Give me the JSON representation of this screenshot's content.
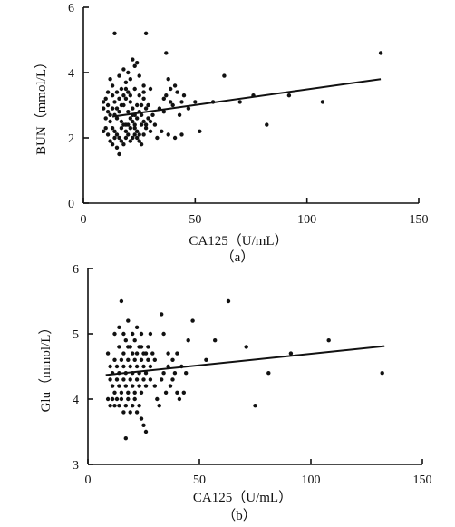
{
  "figure_a_caption": "（a）",
  "figure_b_caption": "（b）",
  "chart_data": [
    {
      "type": "scatter",
      "panel": "a",
      "xlabel": "CA125（U/mL）",
      "ylabel": "BUN（mmol/L）",
      "xlim": [
        0,
        150
      ],
      "ylim": [
        0,
        6
      ],
      "xticks": [
        0,
        50,
        100,
        150
      ],
      "yticks": [
        0,
        2,
        4,
        6
      ],
      "trendline": {
        "x": [
          13,
          133
        ],
        "y": [
          2.65,
          3.8
        ]
      },
      "points": [
        [
          14,
          5.2
        ],
        [
          28,
          5.2
        ],
        [
          37,
          4.6
        ],
        [
          133,
          4.6
        ],
        [
          63,
          3.9
        ],
        [
          22,
          4.4
        ],
        [
          24,
          4.3
        ],
        [
          18,
          4.1
        ],
        [
          20,
          4.0
        ],
        [
          23,
          4.2
        ],
        [
          12,
          3.8
        ],
        [
          16,
          3.9
        ],
        [
          19,
          3.7
        ],
        [
          21,
          3.8
        ],
        [
          25,
          3.9
        ],
        [
          27,
          3.6
        ],
        [
          30,
          3.5
        ],
        [
          38,
          3.8
        ],
        [
          39,
          3.5
        ],
        [
          42,
          3.4
        ],
        [
          45,
          3.3
        ],
        [
          36,
          3.2
        ],
        [
          40,
          3.0
        ],
        [
          44,
          3.1
        ],
        [
          47,
          2.9
        ],
        [
          50,
          3.1
        ],
        [
          76,
          3.3
        ],
        [
          92,
          3.3
        ],
        [
          70,
          3.1
        ],
        [
          58,
          3.1
        ],
        [
          107,
          3.1
        ],
        [
          82,
          2.4
        ],
        [
          52,
          2.2
        ],
        [
          38,
          2.1
        ],
        [
          35,
          2.2
        ],
        [
          41,
          2.0
        ],
        [
          44,
          2.1
        ],
        [
          33,
          2.0
        ],
        [
          10,
          3.2
        ],
        [
          11,
          3.0
        ],
        [
          13,
          2.9
        ],
        [
          14,
          2.7
        ],
        [
          15,
          2.6
        ],
        [
          16,
          2.8
        ],
        [
          17,
          3.0
        ],
        [
          18,
          3.3
        ],
        [
          19,
          3.5
        ],
        [
          20,
          3.4
        ],
        [
          21,
          3.1
        ],
        [
          22,
          2.9
        ],
        [
          23,
          2.7
        ],
        [
          24,
          2.6
        ],
        [
          25,
          2.8
        ],
        [
          26,
          3.0
        ],
        [
          27,
          3.2
        ],
        [
          28,
          2.9
        ],
        [
          29,
          2.6
        ],
        [
          30,
          2.5
        ],
        [
          31,
          2.7
        ],
        [
          12,
          2.5
        ],
        [
          13,
          2.3
        ],
        [
          14,
          2.2
        ],
        [
          15,
          2.1
        ],
        [
          16,
          2.0
        ],
        [
          17,
          2.3
        ],
        [
          18,
          2.4
        ],
        [
          19,
          2.2
        ],
        [
          20,
          2.1
        ],
        [
          21,
          1.9
        ],
        [
          22,
          2.0
        ],
        [
          23,
          2.3
        ],
        [
          24,
          2.2
        ],
        [
          25,
          2.1
        ],
        [
          26,
          2.4
        ],
        [
          27,
          2.5
        ],
        [
          28,
          2.3
        ],
        [
          10,
          2.3
        ],
        [
          11,
          2.1
        ],
        [
          12,
          1.9
        ],
        [
          13,
          1.8
        ],
        [
          14,
          2.0
        ],
        [
          15,
          1.7
        ],
        [
          16,
          1.5
        ],
        [
          17,
          1.9
        ],
        [
          18,
          1.8
        ],
        [
          19,
          2.0
        ],
        [
          20,
          2.4
        ],
        [
          21,
          2.6
        ],
        [
          22,
          2.5
        ],
        [
          23,
          2.4
        ],
        [
          24,
          2.0
        ],
        [
          25,
          1.9
        ],
        [
          26,
          1.8
        ],
        [
          27,
          2.1
        ],
        [
          11,
          3.4
        ],
        [
          13,
          3.6
        ],
        [
          15,
          3.4
        ],
        [
          17,
          3.5
        ],
        [
          19,
          3.2
        ],
        [
          21,
          3.3
        ],
        [
          23,
          3.5
        ],
        [
          25,
          3.3
        ],
        [
          27,
          3.4
        ],
        [
          29,
          3.0
        ],
        [
          14,
          3.1
        ],
        [
          16,
          3.2
        ],
        [
          18,
          3.0
        ],
        [
          20,
          2.8
        ],
        [
          22,
          2.7
        ],
        [
          24,
          3.0
        ],
        [
          26,
          2.7
        ],
        [
          28,
          2.4
        ],
        [
          30,
          2.2
        ],
        [
          32,
          2.4
        ],
        [
          12,
          2.7
        ],
        [
          10,
          2.6
        ],
        [
          11,
          2.8
        ],
        [
          13,
          3.3
        ],
        [
          15,
          2.9
        ],
        [
          17,
          2.5
        ],
        [
          19,
          2.4
        ],
        [
          21,
          2.3
        ],
        [
          23,
          2.1
        ],
        [
          9,
          2.2
        ],
        [
          9,
          2.9
        ],
        [
          9,
          3.1
        ],
        [
          36,
          2.8
        ],
        [
          37,
          3.3
        ],
        [
          34,
          2.9
        ],
        [
          39,
          3.1
        ],
        [
          41,
          3.6
        ],
        [
          43,
          2.7
        ]
      ]
    },
    {
      "type": "scatter",
      "panel": "b",
      "xlabel": "CA125（U/mL）",
      "ylabel": "Glu（mmol/L）",
      "xlim": [
        0,
        150
      ],
      "ylim": [
        3,
        6
      ],
      "xticks": [
        0,
        50,
        100,
        150
      ],
      "yticks": [
        3,
        4,
        5,
        6
      ],
      "trendline": {
        "x": [
          8,
          133
        ],
        "y": [
          4.37,
          4.81
        ]
      },
      "points": [
        [
          15,
          5.5
        ],
        [
          63,
          5.5
        ],
        [
          33,
          5.3
        ],
        [
          47,
          5.2
        ],
        [
          18,
          5.2
        ],
        [
          22,
          5.1
        ],
        [
          14,
          5.1
        ],
        [
          12,
          5.0
        ],
        [
          16,
          5.0
        ],
        [
          20,
          5.0
        ],
        [
          24,
          5.0
        ],
        [
          28,
          5.0
        ],
        [
          34,
          5.0
        ],
        [
          45,
          4.9
        ],
        [
          57,
          4.9
        ],
        [
          108,
          4.9
        ],
        [
          71,
          4.8
        ],
        [
          91,
          4.7
        ],
        [
          17,
          4.9
        ],
        [
          19,
          4.8
        ],
        [
          21,
          4.9
        ],
        [
          23,
          4.8
        ],
        [
          25,
          4.7
        ],
        [
          27,
          4.8
        ],
        [
          29,
          4.7
        ],
        [
          36,
          4.7
        ],
        [
          38,
          4.6
        ],
        [
          40,
          4.7
        ],
        [
          42,
          4.5
        ],
        [
          44,
          4.4
        ],
        [
          53,
          4.6
        ],
        [
          81,
          4.4
        ],
        [
          132,
          4.4
        ],
        [
          75,
          3.9
        ],
        [
          9,
          4.7
        ],
        [
          10,
          4.5
        ],
        [
          11,
          4.4
        ],
        [
          12,
          4.6
        ],
        [
          13,
          4.5
        ],
        [
          14,
          4.4
        ],
        [
          15,
          4.6
        ],
        [
          16,
          4.5
        ],
        [
          17,
          4.4
        ],
        [
          18,
          4.6
        ],
        [
          19,
          4.5
        ],
        [
          20,
          4.4
        ],
        [
          21,
          4.6
        ],
        [
          22,
          4.5
        ],
        [
          23,
          4.4
        ],
        [
          24,
          4.6
        ],
        [
          25,
          4.5
        ],
        [
          26,
          4.4
        ],
        [
          27,
          4.6
        ],
        [
          28,
          4.5
        ],
        [
          10,
          4.3
        ],
        [
          11,
          4.2
        ],
        [
          12,
          4.1
        ],
        [
          13,
          4.3
        ],
        [
          14,
          4.2
        ],
        [
          15,
          4.1
        ],
        [
          16,
          4.3
        ],
        [
          17,
          4.2
        ],
        [
          18,
          4.1
        ],
        [
          19,
          4.3
        ],
        [
          20,
          4.2
        ],
        [
          21,
          4.1
        ],
        [
          22,
          4.3
        ],
        [
          23,
          4.2
        ],
        [
          24,
          4.1
        ],
        [
          25,
          4.3
        ],
        [
          26,
          4.2
        ],
        [
          9,
          4.0
        ],
        [
          10,
          3.9
        ],
        [
          11,
          4.0
        ],
        [
          12,
          3.9
        ],
        [
          13,
          4.0
        ],
        [
          14,
          3.9
        ],
        [
          15,
          4.0
        ],
        [
          16,
          3.8
        ],
        [
          17,
          3.9
        ],
        [
          18,
          4.0
        ],
        [
          19,
          3.8
        ],
        [
          20,
          3.9
        ],
        [
          21,
          4.0
        ],
        [
          22,
          3.8
        ],
        [
          23,
          3.9
        ],
        [
          24,
          3.7
        ],
        [
          25,
          3.6
        ],
        [
          26,
          3.5
        ],
        [
          17,
          3.4
        ],
        [
          30,
          4.2
        ],
        [
          31,
          4.0
        ],
        [
          33,
          4.3
        ],
        [
          35,
          4.1
        ],
        [
          37,
          4.2
        ],
        [
          39,
          4.4
        ],
        [
          41,
          4.0
        ],
        [
          43,
          4.1
        ],
        [
          32,
          3.9
        ],
        [
          34,
          4.4
        ],
        [
          36,
          4.5
        ],
        [
          38,
          4.3
        ],
        [
          40,
          4.1
        ],
        [
          14,
          4.8
        ],
        [
          16,
          4.7
        ],
        [
          18,
          4.8
        ],
        [
          20,
          4.7
        ],
        [
          22,
          4.7
        ],
        [
          24,
          4.8
        ],
        [
          26,
          4.7
        ],
        [
          28,
          4.3
        ],
        [
          30,
          4.6
        ]
      ]
    }
  ]
}
